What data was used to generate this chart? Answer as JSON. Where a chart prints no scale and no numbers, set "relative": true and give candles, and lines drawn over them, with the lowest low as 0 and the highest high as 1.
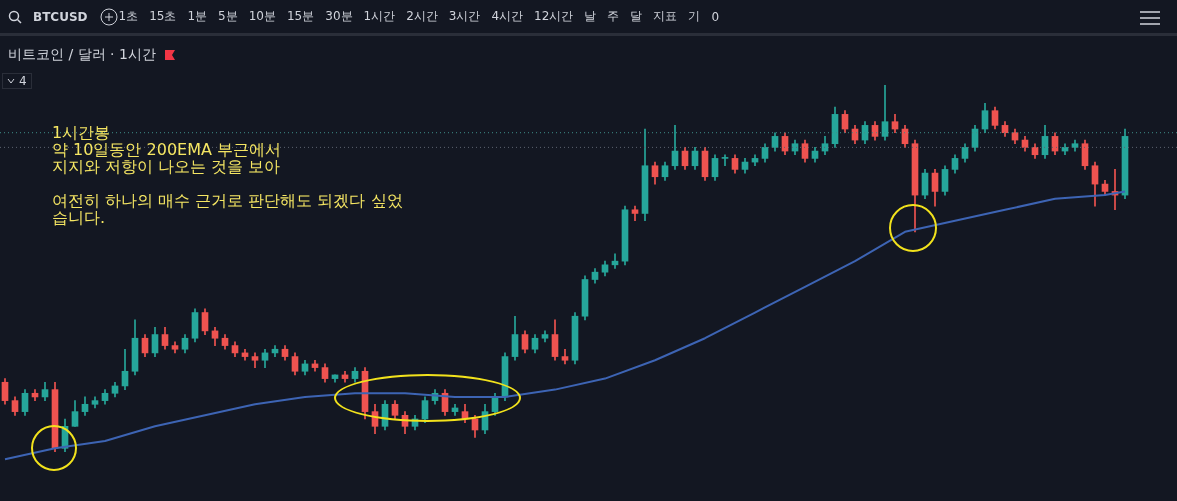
{
  "chart_data": {
    "type": "candlestick",
    "relative": true,
    "title": "비트코인 / 달러 · 1시간",
    "annotations": [
      "1시간봉\n약 10일동안 200EMA 부근에서\n지지와 저항이 나오는 것을 보아\n\n여전히 하나의 매수 근거로 판단해도 되겠다 싶었\n습니다.",
      "BTCUSD",
      "1초",
      "15초",
      "1분",
      "5분",
      "10분",
      "15분",
      "30분",
      "1시간",
      "2시간",
      "3시간",
      "4시간",
      "12시간",
      "날",
      "주",
      "달",
      "지표",
      "기",
      "0",
      "4"
    ],
    "categories": [
      null,
      null,
      null,
      null,
      null,
      null,
      null,
      null,
      null,
      null,
      null,
      null,
      null,
      null,
      null,
      null,
      null,
      null,
      null,
      null,
      null,
      null,
      null,
      null,
      null,
      null,
      null,
      null,
      null,
      null,
      null,
      null,
      null,
      null,
      null,
      null,
      null,
      null,
      null,
      null,
      null,
      null,
      null,
      null,
      null,
      null,
      null,
      null,
      null,
      null,
      null,
      null,
      null,
      null,
      null,
      null,
      null,
      null,
      null,
      null,
      null,
      null,
      null,
      null,
      null,
      null,
      null,
      null,
      null,
      null,
      null,
      null,
      null,
      null,
      null,
      null,
      null,
      null,
      null,
      null,
      null,
      null,
      null,
      null,
      null,
      null,
      null,
      null,
      null,
      null,
      null,
      null,
      null,
      null,
      null,
      null,
      null,
      null,
      null,
      null,
      null,
      null,
      null,
      null,
      null,
      null,
      null,
      null,
      null,
      null,
      null,
      null,
      null
    ],
    "ohlc": [
      [
        0.19,
        0.2,
        0.13,
        0.14
      ],
      [
        0.14,
        0.15,
        0.1,
        0.11
      ],
      [
        0.11,
        0.17,
        0.1,
        0.16
      ],
      [
        0.16,
        0.17,
        0.14,
        0.15
      ],
      [
        0.15,
        0.19,
        0.14,
        0.17
      ],
      [
        0.17,
        0.19,
        0.0,
        0.01
      ],
      [
        0.01,
        0.09,
        0.0,
        0.07
      ],
      [
        0.07,
        0.14,
        0.07,
        0.11
      ],
      [
        0.11,
        0.15,
        0.1,
        0.13
      ],
      [
        0.13,
        0.15,
        0.12,
        0.14
      ],
      [
        0.14,
        0.17,
        0.13,
        0.16
      ],
      [
        0.16,
        0.19,
        0.15,
        0.18
      ],
      [
        0.18,
        0.28,
        0.17,
        0.22
      ],
      [
        0.22,
        0.36,
        0.21,
        0.31
      ],
      [
        0.31,
        0.32,
        0.26,
        0.27
      ],
      [
        0.27,
        0.34,
        0.26,
        0.32
      ],
      [
        0.32,
        0.34,
        0.28,
        0.29
      ],
      [
        0.29,
        0.3,
        0.27,
        0.28
      ],
      [
        0.28,
        0.32,
        0.27,
        0.31
      ],
      [
        0.31,
        0.39,
        0.3,
        0.38
      ],
      [
        0.38,
        0.39,
        0.32,
        0.33
      ],
      [
        0.33,
        0.34,
        0.29,
        0.31
      ],
      [
        0.31,
        0.32,
        0.28,
        0.29
      ],
      [
        0.29,
        0.3,
        0.26,
        0.27
      ],
      [
        0.27,
        0.28,
        0.25,
        0.26
      ],
      [
        0.26,
        0.27,
        0.23,
        0.25
      ],
      [
        0.25,
        0.28,
        0.23,
        0.27
      ],
      [
        0.27,
        0.29,
        0.26,
        0.28
      ],
      [
        0.28,
        0.29,
        0.25,
        0.26
      ],
      [
        0.26,
        0.27,
        0.21,
        0.22
      ],
      [
        0.22,
        0.25,
        0.21,
        0.24
      ],
      [
        0.24,
        0.25,
        0.22,
        0.23
      ],
      [
        0.23,
        0.24,
        0.19,
        0.2
      ],
      [
        0.2,
        0.21,
        0.19,
        0.21
      ],
      [
        0.21,
        0.22,
        0.19,
        0.2
      ],
      [
        0.2,
        0.23,
        0.19,
        0.22
      ],
      [
        0.22,
        0.23,
        0.09,
        0.11
      ],
      [
        0.11,
        0.13,
        0.05,
        0.07
      ],
      [
        0.07,
        0.14,
        0.06,
        0.13
      ],
      [
        0.13,
        0.14,
        0.09,
        0.1
      ],
      [
        0.1,
        0.11,
        0.05,
        0.07
      ],
      [
        0.07,
        0.1,
        0.06,
        0.09
      ],
      [
        0.09,
        0.15,
        0.08,
        0.14
      ],
      [
        0.14,
        0.17,
        0.13,
        0.16
      ],
      [
        0.16,
        0.17,
        0.1,
        0.11
      ],
      [
        0.11,
        0.13,
        0.1,
        0.12
      ],
      [
        0.11,
        0.13,
        0.08,
        0.09
      ],
      [
        0.09,
        0.1,
        0.04,
        0.06
      ],
      [
        0.06,
        0.13,
        0.05,
        0.11
      ],
      [
        0.11,
        0.16,
        0.1,
        0.15
      ],
      [
        0.15,
        0.27,
        0.14,
        0.26
      ],
      [
        0.26,
        0.37,
        0.25,
        0.32
      ],
      [
        0.32,
        0.33,
        0.27,
        0.28
      ],
      [
        0.28,
        0.32,
        0.27,
        0.31
      ],
      [
        0.31,
        0.33,
        0.3,
        0.32
      ],
      [
        0.32,
        0.36,
        0.25,
        0.26
      ],
      [
        0.26,
        0.28,
        0.24,
        0.25
      ],
      [
        0.25,
        0.38,
        0.24,
        0.37
      ],
      [
        0.37,
        0.48,
        0.36,
        0.47
      ],
      [
        0.47,
        0.5,
        0.46,
        0.49
      ],
      [
        0.49,
        0.52,
        0.48,
        0.51
      ],
      [
        0.51,
        0.54,
        0.5,
        0.52
      ],
      [
        0.52,
        0.67,
        0.51,
        0.66
      ],
      [
        0.66,
        0.67,
        0.63,
        0.65
      ],
      [
        0.65,
        0.88,
        0.63,
        0.78
      ],
      [
        0.78,
        0.79,
        0.73,
        0.75
      ],
      [
        0.75,
        0.79,
        0.74,
        0.78
      ],
      [
        0.78,
        0.89,
        0.77,
        0.82
      ],
      [
        0.82,
        0.83,
        0.77,
        0.78
      ],
      [
        0.78,
        0.83,
        0.77,
        0.82
      ],
      [
        0.82,
        0.83,
        0.74,
        0.75
      ],
      [
        0.75,
        0.81,
        0.74,
        0.8
      ],
      [
        0.8,
        0.81,
        0.78,
        0.8
      ],
      [
        0.8,
        0.81,
        0.76,
        0.77
      ],
      [
        0.77,
        0.8,
        0.76,
        0.79
      ],
      [
        0.79,
        0.81,
        0.78,
        0.8
      ],
      [
        0.8,
        0.84,
        0.79,
        0.83
      ],
      [
        0.83,
        0.87,
        0.82,
        0.86
      ],
      [
        0.86,
        0.87,
        0.81,
        0.82
      ],
      [
        0.82,
        0.85,
        0.81,
        0.84
      ],
      [
        0.84,
        0.85,
        0.79,
        0.8
      ],
      [
        0.8,
        0.83,
        0.79,
        0.82
      ],
      [
        0.82,
        0.86,
        0.81,
        0.84
      ],
      [
        0.84,
        0.94,
        0.83,
        0.92
      ],
      [
        0.92,
        0.93,
        0.87,
        0.88
      ],
      [
        0.88,
        0.89,
        0.84,
        0.85
      ],
      [
        0.85,
        0.9,
        0.84,
        0.89
      ],
      [
        0.89,
        0.9,
        0.85,
        0.86
      ],
      [
        0.86,
        1.0,
        0.85,
        0.9
      ],
      [
        0.9,
        0.92,
        0.87,
        0.88
      ],
      [
        0.88,
        0.89,
        0.83,
        0.84
      ],
      [
        0.84,
        0.85,
        0.6,
        0.7
      ],
      [
        0.7,
        0.77,
        0.69,
        0.76
      ],
      [
        0.76,
        0.77,
        0.67,
        0.71
      ],
      [
        0.71,
        0.78,
        0.7,
        0.77
      ],
      [
        0.77,
        0.81,
        0.76,
        0.8
      ],
      [
        0.8,
        0.84,
        0.79,
        0.83
      ],
      [
        0.83,
        0.89,
        0.82,
        0.88
      ],
      [
        0.88,
        0.95,
        0.87,
        0.93
      ],
      [
        0.93,
        0.94,
        0.88,
        0.89
      ],
      [
        0.89,
        0.9,
        0.86,
        0.87
      ],
      [
        0.87,
        0.88,
        0.84,
        0.85
      ],
      [
        0.85,
        0.86,
        0.82,
        0.83
      ],
      [
        0.83,
        0.84,
        0.8,
        0.81
      ],
      [
        0.81,
        0.89,
        0.8,
        0.86
      ],
      [
        0.86,
        0.87,
        0.81,
        0.82
      ],
      [
        0.82,
        0.84,
        0.81,
        0.83
      ],
      [
        0.83,
        0.85,
        0.82,
        0.84
      ],
      [
        0.84,
        0.85,
        0.77,
        0.78
      ],
      [
        0.78,
        0.79,
        0.67,
        0.73
      ],
      [
        0.73,
        0.74,
        0.7,
        0.71
      ],
      [
        0.71,
        0.77,
        0.66,
        0.7
      ],
      [
        0.7,
        0.88,
        0.69,
        0.86
      ]
    ],
    "series": [
      {
        "type": "line",
        "color": "#3d64b4",
        "values": [
          -0.02,
          null,
          null,
          null,
          null,
          0.01,
          null,
          null,
          null,
          null,
          0.03,
          null,
          null,
          null,
          null,
          0.07,
          null,
          null,
          null,
          null,
          0.1,
          null,
          null,
          null,
          null,
          0.13,
          null,
          null,
          null,
          null,
          0.15,
          null,
          null,
          null,
          null,
          0.16,
          null,
          null,
          null,
          null,
          0.16,
          null,
          null,
          null,
          null,
          0.15,
          null,
          null,
          null,
          null,
          0.15,
          null,
          null,
          null,
          null,
          0.17,
          null,
          null,
          null,
          null,
          0.2,
          null,
          null,
          null,
          null,
          0.25,
          null,
          null,
          null,
          null,
          0.31,
          null,
          null,
          null,
          null,
          0.38,
          null,
          null,
          null,
          null,
          0.45,
          null,
          null,
          null,
          null,
          0.52,
          null,
          null,
          null,
          null,
          0.6,
          null,
          null,
          null,
          null,
          0.63,
          null,
          null,
          null,
          null,
          0.66,
          null,
          null,
          null,
          null,
          0.69,
          null,
          null,
          null,
          null,
          0.7,
          null,
          0.71
        ]
      }
    ],
    "ref_lines": [
      {
        "axis": "y",
        "value": 0.87,
        "line_style": "dotted",
        "color": "#3f8f8a"
      },
      {
        "axis": "y",
        "value": 0.83,
        "line_style": "dotted",
        "color": "#5d6370"
      }
    ]
  }
}
